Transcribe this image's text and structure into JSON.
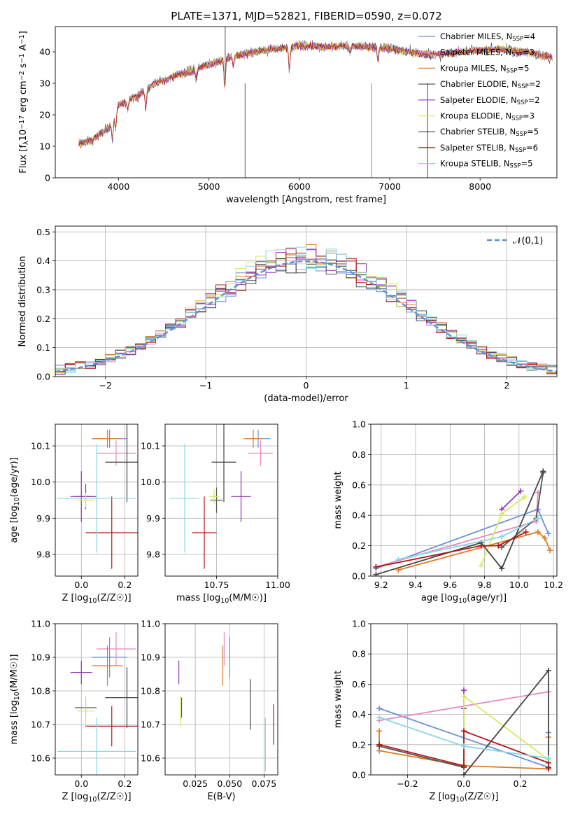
{
  "title": "PLATE=1371, MJD=52821, FIBERID=0590, z=0.072",
  "series": [
    {
      "name": "Chabrier MILES",
      "nssp": "4",
      "color": "#6a8fd8"
    },
    {
      "name": "Salpeter MILES",
      "nssp": "3",
      "color": "#e889c0"
    },
    {
      "name": "Kroupa MILES",
      "nssp": "5",
      "color": "#dd7b26"
    },
    {
      "name": "Chabrier ELODIE",
      "nssp": "2",
      "color": "#555555"
    },
    {
      "name": "Salpeter ELODIE",
      "nssp": "2",
      "color": "#9535b8"
    },
    {
      "name": "Kroupa ELODIE",
      "nssp": "3",
      "color": "#d8ea5c"
    },
    {
      "name": "Chabrier STELIB",
      "nssp": "5",
      "color": "#444444"
    },
    {
      "name": "Salpeter STELIB",
      "nssp": "6",
      "color": "#b01818"
    },
    {
      "name": "Kroupa STELIB",
      "nssp": "5",
      "color": "#86d8e4"
    }
  ],
  "chart_data": [
    {
      "id": "spectrum",
      "type": "line",
      "xlabel": "wavelength [Angstrom, rest frame]",
      "ylabel": "Flux [f_λ10^-17 erg cm^-2 s^-1 A^-1]",
      "xlim": [
        3300,
        8850
      ],
      "ylim": [
        0,
        48
      ],
      "xticks": [
        4000,
        5000,
        6000,
        7000,
        8000
      ],
      "yticks": [
        0,
        10,
        20,
        30,
        40
      ],
      "continuum": [
        [
          3560,
          11
        ],
        [
          3700,
          12
        ],
        [
          3900,
          16
        ],
        [
          4000,
          23
        ],
        [
          4200,
          26
        ],
        [
          4400,
          30
        ],
        [
          4600,
          32
        ],
        [
          4800,
          34
        ],
        [
          5000,
          36
        ],
        [
          5200,
          38
        ],
        [
          5500,
          40
        ],
        [
          5800,
          41
        ],
        [
          6000,
          42
        ],
        [
          6300,
          41.5
        ],
        [
          6600,
          42
        ],
        [
          7000,
          41
        ],
        [
          7200,
          40
        ],
        [
          7500,
          39
        ],
        [
          7800,
          40
        ],
        [
          8200,
          41
        ],
        [
          8500,
          40
        ],
        [
          8800,
          38
        ]
      ],
      "absorption_lines": [
        [
          3933,
          6
        ],
        [
          3968,
          5
        ],
        [
          4102,
          3
        ],
        [
          4300,
          6
        ],
        [
          4861,
          3
        ],
        [
          5175,
          9
        ],
        [
          5270,
          3
        ],
        [
          5890,
          7
        ],
        [
          6563,
          2
        ],
        [
          6870,
          4
        ]
      ],
      "spikes": [
        [
          5180,
          48
        ],
        [
          5400,
          0
        ],
        [
          6800,
          0
        ],
        [
          7420,
          0
        ]
      ],
      "legend": "right",
      "grid": false
    },
    {
      "id": "residuals",
      "type": "histogram",
      "xlabel": "(data-model)/error",
      "ylabel": "Normed distribution",
      "xlim": [
        -2.5,
        2.5
      ],
      "ylim": [
        0,
        0.52
      ],
      "xticks": [
        -2,
        -1,
        0,
        1,
        2
      ],
      "yticks": [
        0.0,
        0.1,
        0.2,
        0.3,
        0.4,
        0.5
      ],
      "bin_width": 0.1,
      "reference_label": "𝒩(0,1)",
      "reference_color": "#5b8ed6",
      "legend": "top-right",
      "grid": true
    },
    {
      "id": "age-vs-Z",
      "type": "errorbar",
      "xlabel": "Z [log10(Z/Z☉)]",
      "ylabel": "age [log10(age/yr)]",
      "xlim": [
        -0.12,
        0.26
      ],
      "ylim": [
        9.74,
        10.16
      ],
      "xticks": [
        0.0,
        0.2
      ],
      "yticks": [
        9.8,
        9.9,
        10.0,
        10.1
      ],
      "points": [
        {
          "x": 0.13,
          "xerr": 0.08,
          "y": 10.12,
          "yerr": 0.025,
          "color": "#6a8fd8"
        },
        {
          "x": 0.16,
          "xerr": 0.09,
          "y": 10.08,
          "yerr": 0.035,
          "color": "#e889c0"
        },
        {
          "x": 0.12,
          "xerr": 0.07,
          "y": 10.12,
          "yerr": 0.025,
          "color": "#dd7b26"
        },
        {
          "x": 0.02,
          "xerr": 0.05,
          "y": 9.96,
          "yerr": 0.035,
          "color": "#555555"
        },
        {
          "x": 0.0,
          "xerr": 0.05,
          "y": 9.96,
          "yerr": 0.07,
          "color": "#9535b8"
        },
        {
          "x": 0.02,
          "xerr": 0.04,
          "y": 9.95,
          "yerr": 0.02,
          "color": "#d8ea5c"
        },
        {
          "x": 0.21,
          "xerr": 0.1,
          "y": 10.055,
          "yerr": 0.11,
          "color": "#444444"
        },
        {
          "x": 0.14,
          "xerr": 0.12,
          "y": 9.86,
          "yerr": 0.1,
          "color": "#b01818"
        },
        {
          "x": 0.07,
          "xerr": 0.18,
          "y": 9.955,
          "yerr": 0.15,
          "color": "#86d8e4"
        }
      ],
      "grid": true
    },
    {
      "id": "age-vs-mass",
      "type": "errorbar",
      "xlabel": "mass [log10(M/M☉)]",
      "ylabel": "",
      "xlim": [
        10.54,
        11.0
      ],
      "ylim": [
        9.74,
        10.16
      ],
      "xticks": [
        10.75,
        11.0
      ],
      "yticks": [
        9.8,
        9.9,
        10.0,
        10.1
      ],
      "points": [
        {
          "x": 10.92,
          "xerr": 0.05,
          "y": 10.12,
          "yerr": 0.025,
          "color": "#6a8fd8"
        },
        {
          "x": 10.93,
          "xerr": 0.05,
          "y": 10.08,
          "yerr": 0.035,
          "color": "#e889c0"
        },
        {
          "x": 10.9,
          "xerr": 0.04,
          "y": 10.12,
          "yerr": 0.025,
          "color": "#dd7b26"
        },
        {
          "x": 10.75,
          "xerr": 0.025,
          "y": 9.95,
          "yerr": 0.035,
          "color": "#555555"
        },
        {
          "x": 10.85,
          "xerr": 0.04,
          "y": 9.96,
          "yerr": 0.07,
          "color": "#9535b8"
        },
        {
          "x": 10.74,
          "xerr": 0.02,
          "y": 9.96,
          "yerr": 0.02,
          "color": "#d8ea5c"
        },
        {
          "x": 10.78,
          "xerr": 0.05,
          "y": 10.055,
          "yerr": 0.11,
          "color": "#444444"
        },
        {
          "x": 10.7,
          "xerr": 0.05,
          "y": 9.86,
          "yerr": 0.1,
          "color": "#b01818"
        },
        {
          "x": 10.62,
          "xerr": 0.06,
          "y": 9.955,
          "yerr": 0.15,
          "color": "#86d8e4"
        }
      ],
      "grid": true
    },
    {
      "id": "weight-vs-age",
      "type": "line",
      "xlabel": "age [log10(age/yr)]",
      "ylabel": "mass weight",
      "xlim": [
        9.14,
        10.22
      ],
      "ylim": [
        0,
        1.0
      ],
      "xticks": [
        9.2,
        9.4,
        9.6,
        9.8,
        10.0,
        10.2
      ],
      "yticks": [
        0.0,
        0.2,
        0.4,
        0.6,
        0.8,
        1.0
      ],
      "lines": [
        {
          "color": "#6a8fd8",
          "x": [
            9.17,
            10.11,
            10.17
          ],
          "y": [
            0.05,
            0.44,
            0.28
          ]
        },
        {
          "color": "#e889c0",
          "x": [
            9.17,
            10.1,
            10.11
          ],
          "y": [
            0.06,
            0.36,
            0.55
          ]
        },
        {
          "color": "#dd7b26",
          "x": [
            9.3,
            10.11,
            10.15,
            10.18
          ],
          "y": [
            0.04,
            0.29,
            0.25,
            0.17
          ]
        },
        {
          "color": "#555555",
          "x": [
            9.9,
            10.1,
            10.14
          ],
          "y": [
            0.19,
            0.38,
            0.68
          ]
        },
        {
          "color": "#9535b8",
          "x": [
            9.9,
            10.01
          ],
          "y": [
            0.44,
            0.56
          ]
        },
        {
          "color": "#d8ea5c",
          "x": [
            9.78,
            9.9,
            10.03
          ],
          "y": [
            0.07,
            0.41,
            0.52
          ]
        },
        {
          "color": "#444444",
          "x": [
            9.17,
            9.78,
            9.9,
            10.14
          ],
          "y": [
            0.01,
            0.22,
            0.05,
            0.69
          ]
        },
        {
          "color": "#b01818",
          "x": [
            9.17,
            9.78,
            9.88,
            10.04
          ],
          "y": [
            0.06,
            0.2,
            0.2,
            0.29
          ]
        },
        {
          "color": "#86d8e4",
          "x": [
            9.3,
            9.9,
            10.11
          ],
          "y": [
            0.11,
            0.26,
            0.38
          ]
        }
      ],
      "grid": true
    },
    {
      "id": "mass-vs-Z",
      "type": "errorbar",
      "xlabel": "Z [log10(Z/Z☉)]",
      "ylabel": "mass [log10(M/M☉)]",
      "xlim": [
        -0.12,
        0.26
      ],
      "ylim": [
        10.55,
        11.0
      ],
      "xticks": [
        0.0,
        0.2
      ],
      "yticks": [
        10.6,
        10.7,
        10.8,
        10.9,
        11.0
      ],
      "points": [
        {
          "x": 0.13,
          "xerr": 0.08,
          "y": 10.9,
          "yerr": 0.06,
          "color": "#6a8fd8"
        },
        {
          "x": 0.16,
          "xerr": 0.09,
          "y": 10.925,
          "yerr": 0.05,
          "color": "#e889c0"
        },
        {
          "x": 0.12,
          "xerr": 0.07,
          "y": 10.875,
          "yerr": 0.06,
          "color": "#dd7b26"
        },
        {
          "x": 0.02,
          "xerr": 0.05,
          "y": 10.75,
          "yerr": 0.03,
          "color": "#555555"
        },
        {
          "x": 0.0,
          "xerr": 0.05,
          "y": 10.855,
          "yerr": 0.035,
          "color": "#9535b8"
        },
        {
          "x": 0.02,
          "xerr": 0.04,
          "y": 10.74,
          "yerr": 0.045,
          "color": "#d8ea5c"
        },
        {
          "x": 0.21,
          "xerr": 0.1,
          "y": 10.78,
          "yerr": 0.09,
          "color": "#444444"
        },
        {
          "x": 0.14,
          "xerr": 0.12,
          "y": 10.695,
          "yerr": 0.06,
          "color": "#b01818"
        },
        {
          "x": 0.07,
          "xerr": 0.18,
          "y": 10.62,
          "yerr": 0.1,
          "color": "#86d8e4"
        }
      ],
      "grid": true
    },
    {
      "id": "mass-vs-ebv",
      "type": "errorbar",
      "xlabel": "E(B-V)",
      "ylabel": "",
      "xlim": [
        0.003,
        0.085
      ],
      "ylim": [
        10.55,
        11.0
      ],
      "xticks": [
        0.025,
        0.05,
        0.075
      ],
      "ytick_labels": [
        "0.025",
        "0.050",
        "0.075"
      ],
      "yticks": [
        10.6,
        10.7,
        10.8,
        10.9,
        11.0
      ],
      "points": [
        {
          "x": 0.05,
          "xerr": 0,
          "y": 10.9,
          "yerr": 0.06,
          "color": "#6a8fd8"
        },
        {
          "x": 0.046,
          "xerr": 0,
          "y": 10.925,
          "yerr": 0.05,
          "color": "#e889c0"
        },
        {
          "x": 0.045,
          "xerr": 0,
          "y": 10.875,
          "yerr": 0.06,
          "color": "#dd7b26"
        },
        {
          "x": 0.015,
          "xerr": 0,
          "y": 10.75,
          "yerr": 0.03,
          "color": "#555555"
        },
        {
          "x": 0.013,
          "xerr": 0,
          "y": 10.855,
          "yerr": 0.035,
          "color": "#9535b8"
        },
        {
          "x": 0.014,
          "xerr": 0,
          "y": 10.74,
          "yerr": 0.045,
          "color": "#d8ea5c"
        },
        {
          "x": 0.065,
          "xerr": 0,
          "y": 10.76,
          "yerr": 0.075,
          "color": "#444444"
        },
        {
          "x": 0.082,
          "xerr": 0,
          "y": 10.7,
          "yerr": 0.06,
          "color": "#b01818"
        },
        {
          "x": 0.076,
          "xerr": 0,
          "y": 10.64,
          "yerr": 0.08,
          "color": "#86d8e4"
        }
      ],
      "grid": true
    },
    {
      "id": "weight-vs-Z",
      "type": "line",
      "xlabel": "Z [log10(Z/Z☉)]",
      "ylabel": "mass weight",
      "xlim": [
        -0.33,
        0.33
      ],
      "ylim": [
        0,
        1.0
      ],
      "xticks": [
        -0.2,
        0.0,
        0.2
      ],
      "yticks": [
        0.0,
        0.2,
        0.4,
        0.6,
        0.8,
        1.0
      ],
      "lines": [
        {
          "color": "#6a8fd8",
          "x": [
            -0.3,
            0.3,
            0.3
          ],
          "y": [
            0.44,
            0.05,
            0.28
          ]
        },
        {
          "color": "#e889c0",
          "x": [
            -0.3,
            0.3
          ],
          "y": [
            0.36,
            0.55
          ]
        },
        {
          "color": "#dd7b26",
          "x": [
            -0.3,
            -0.3,
            0.0,
            0.3,
            0.3
          ],
          "y": [
            0.29,
            0.16,
            0.06,
            0.04,
            0.25
          ]
        },
        {
          "color": "#555555",
          "x": [
            -0.3,
            0.0,
            0.0
          ],
          "y": [
            0.19,
            0.05,
            0.44
          ]
        },
        {
          "color": "#9535b8",
          "x": [
            0.0,
            0.0
          ],
          "y": [
            0.56,
            0.44
          ]
        },
        {
          "color": "#d8ea5c",
          "x": [
            0.0,
            0.0,
            0.3
          ],
          "y": [
            0.07,
            0.52,
            0.1
          ]
        },
        {
          "color": "#444444",
          "x": [
            0.0,
            0.3,
            0.3
          ],
          "y": [
            0.0,
            0.69,
            0.05
          ]
        },
        {
          "color": "#b01818",
          "x": [
            -0.3,
            0.0,
            0.0,
            0.3,
            0.3
          ],
          "y": [
            0.2,
            0.06,
            0.29,
            0.08,
            0.04
          ]
        },
        {
          "color": "#86d8e4",
          "x": [
            -0.3,
            0.0,
            0.3
          ],
          "y": [
            0.38,
            0.19,
            0.11
          ]
        }
      ],
      "grid": true
    }
  ]
}
